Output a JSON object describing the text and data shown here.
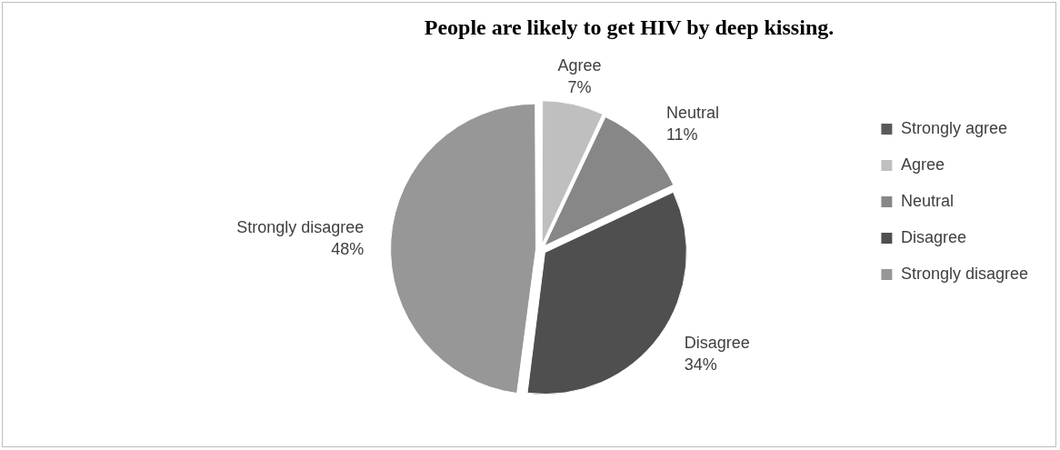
{
  "chart_data": {
    "type": "pie",
    "title": "People are likely to get HIV by deep kissing.",
    "categories": [
      "Strongly agree",
      "Agree",
      "Neutral",
      "Disagree",
      "Strongly disagree"
    ],
    "values": [
      0,
      7,
      11,
      34,
      48
    ],
    "value_labels": [
      null,
      "7%",
      "11%",
      "34%",
      "48%"
    ],
    "colors": [
      "#595959",
      "#bfbfbf",
      "#878787",
      "#4f4f4f",
      "#979797"
    ],
    "legend": "right"
  }
}
